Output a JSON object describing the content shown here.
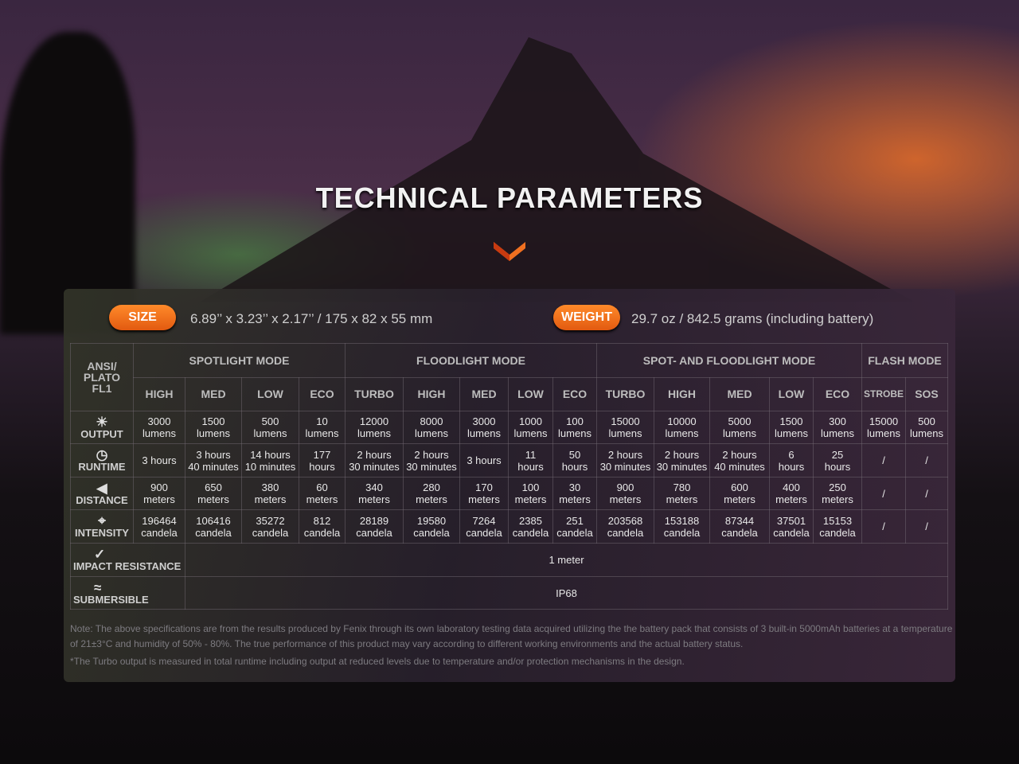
{
  "title": "TECHNICAL PARAMETERS",
  "size": {
    "label": "SIZE",
    "value": "6.89’’ x 3.23’’ x 2.17’’ / 175 x 82 x 55 mm"
  },
  "weight": {
    "label": "WEIGHT",
    "value": "29.7 oz / 842.5 grams (including battery)"
  },
  "accent_color": "#f07020",
  "table": {
    "corner": "ANSI/ PLATO FL1",
    "mode_groups": [
      {
        "label": "SPOTLIGHT MODE",
        "span": 4
      },
      {
        "label": "FLOODLIGHT MODE",
        "span": 5
      },
      {
        "label": "SPOT- AND FLOODLIGHT MODE",
        "span": 5
      },
      {
        "label": "FLASH MODE",
        "span": 2
      }
    ],
    "levels": [
      "HIGH",
      "MED",
      "LOW",
      "ECO",
      "TURBO",
      "HIGH",
      "MED",
      "LOW",
      "ECO",
      "TURBO",
      "HIGH",
      "MED",
      "LOW",
      "ECO",
      "STROBE",
      "SOS"
    ],
    "rows": [
      {
        "label": "OUTPUT",
        "icon": "output-rays-icon",
        "cells": [
          [
            "3000",
            "lumens"
          ],
          [
            "1500",
            "lumens"
          ],
          [
            "500",
            "lumens"
          ],
          [
            "10",
            "lumens"
          ],
          [
            "12000",
            "lumens"
          ],
          [
            "8000",
            "lumens"
          ],
          [
            "3000",
            "lumens"
          ],
          [
            "1000",
            "lumens"
          ],
          [
            "100",
            "lumens"
          ],
          [
            "15000",
            "lumens"
          ],
          [
            "10000",
            "lumens"
          ],
          [
            "5000",
            "lumens"
          ],
          [
            "1500",
            "lumens"
          ],
          [
            "300",
            "lumens"
          ],
          [
            "15000",
            "lumens"
          ],
          [
            "500",
            "lumens"
          ]
        ]
      },
      {
        "label": "RUNTIME",
        "icon": "clock-icon",
        "cells": [
          [
            "3 hours"
          ],
          [
            "3 hours",
            "40 minutes"
          ],
          [
            "14 hours",
            "10 minutes"
          ],
          [
            "177",
            "hours"
          ],
          [
            "2 hours",
            "30 minutes"
          ],
          [
            "2 hours",
            "30 minutes"
          ],
          [
            "3 hours"
          ],
          [
            "11",
            "hours"
          ],
          [
            "50",
            "hours"
          ],
          [
            "2 hours",
            "30 minutes"
          ],
          [
            "2 hours",
            "30 minutes"
          ],
          [
            "2 hours",
            "40 minutes"
          ],
          [
            "6",
            "hours"
          ],
          [
            "25",
            "hours"
          ],
          [
            "/"
          ],
          [
            "/"
          ]
        ]
      },
      {
        "label": "DISTANCE",
        "icon": "beam-distance-icon",
        "cells": [
          [
            "900",
            "meters"
          ],
          [
            "650",
            "meters"
          ],
          [
            "380",
            "meters"
          ],
          [
            "60",
            "meters"
          ],
          [
            "340",
            "meters"
          ],
          [
            "280",
            "meters"
          ],
          [
            "170",
            "meters"
          ],
          [
            "100",
            "meters"
          ],
          [
            "30",
            "meters"
          ],
          [
            "900",
            "meters"
          ],
          [
            "780",
            "meters"
          ],
          [
            "600",
            "meters"
          ],
          [
            "400",
            "meters"
          ],
          [
            "250",
            "meters"
          ],
          [
            "/"
          ],
          [
            "/"
          ]
        ]
      },
      {
        "label": "INTENSITY",
        "icon": "intensity-target-icon",
        "cells": [
          [
            "196464",
            "candela"
          ],
          [
            "106416",
            "candela"
          ],
          [
            "35272",
            "candela"
          ],
          [
            "812",
            "candela"
          ],
          [
            "28189",
            "candela"
          ],
          [
            "19580",
            "candela"
          ],
          [
            "7264",
            "candela"
          ],
          [
            "2385",
            "candela"
          ],
          [
            "251",
            "candela"
          ],
          [
            "203568",
            "candela"
          ],
          [
            "153188",
            "candela"
          ],
          [
            "87344",
            "candela"
          ],
          [
            "37501",
            "candela"
          ],
          [
            "15153",
            "candela"
          ],
          [
            "/"
          ],
          [
            "/"
          ]
        ]
      }
    ],
    "impact": {
      "label": "IMPACT RESISTANCE",
      "icon": "impact-icon",
      "value": "1 meter"
    },
    "submersible": {
      "label": "SUBMERSIBLE",
      "icon": "submersible-icon",
      "value": "IP68"
    }
  },
  "notes": [
    "Note: The above specifications are from the results produced by Fenix through its own laboratory testing data acquired utilizing the the battery pack that consists of 3 built-in 5000mAh batteries at a temperature of 21±3°C and humidity of 50% - 80%. The true performance of this product may vary according to different working environments and the actual battery status.",
    "*The Turbo output is measured in total runtime including output at reduced levels due to temperature and/or protection mechanisms in the design."
  ]
}
